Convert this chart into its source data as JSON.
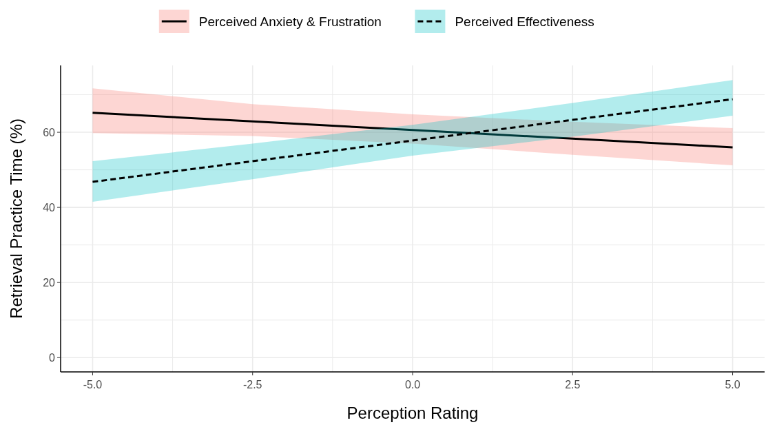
{
  "chart_data": {
    "type": "line",
    "xlabel": "Perception Rating",
    "ylabel": "Retrieval Practice Time (%)",
    "x": [
      -5,
      -2.5,
      0,
      2.5,
      5
    ],
    "series": [
      {
        "name": "Perceived Anxiety & Frustration",
        "color": "#000000",
        "line_style": "solid",
        "values": [
          65.2,
          62.9,
          60.6,
          58.3,
          56.0
        ],
        "lower": [
          59.8,
          59.0,
          57.0,
          54.0,
          51.2
        ],
        "upper": [
          71.7,
          67.5,
          64.8,
          62.8,
          61.1
        ]
      },
      {
        "name": "Perceived Effectiveness",
        "color": "#000000",
        "line_style": "dashed",
        "values": [
          46.8,
          52.3,
          57.8,
          63.3,
          68.8
        ],
        "lower": [
          41.5,
          47.5,
          53.8,
          58.8,
          64.4
        ],
        "upper": [
          52.3,
          57.0,
          62.0,
          67.8,
          73.9
        ]
      }
    ],
    "xlim": [
      -5.5,
      5.5
    ],
    "ylim": [
      -3.8,
      77.8
    ],
    "xticks": [
      {
        "value": -5,
        "label": "-5.0"
      },
      {
        "value": -3.75,
        "label": null
      },
      {
        "value": -2.5,
        "label": "-2.5"
      },
      {
        "value": -1.25,
        "label": null
      },
      {
        "value": 0,
        "label": "0.0"
      },
      {
        "value": 1.25,
        "label": null
      },
      {
        "value": 2.5,
        "label": "2.5"
      },
      {
        "value": 3.75,
        "label": null
      },
      {
        "value": 5,
        "label": "5.0"
      }
    ],
    "yticks": [
      0,
      {
        "value": 10,
        "label": null
      },
      20,
      {
        "value": 30,
        "label": null
      },
      40,
      {
        "value": 50,
        "label": null
      },
      60,
      {
        "value": 70,
        "label": null
      }
    ],
    "grid": true,
    "legend": "top"
  }
}
